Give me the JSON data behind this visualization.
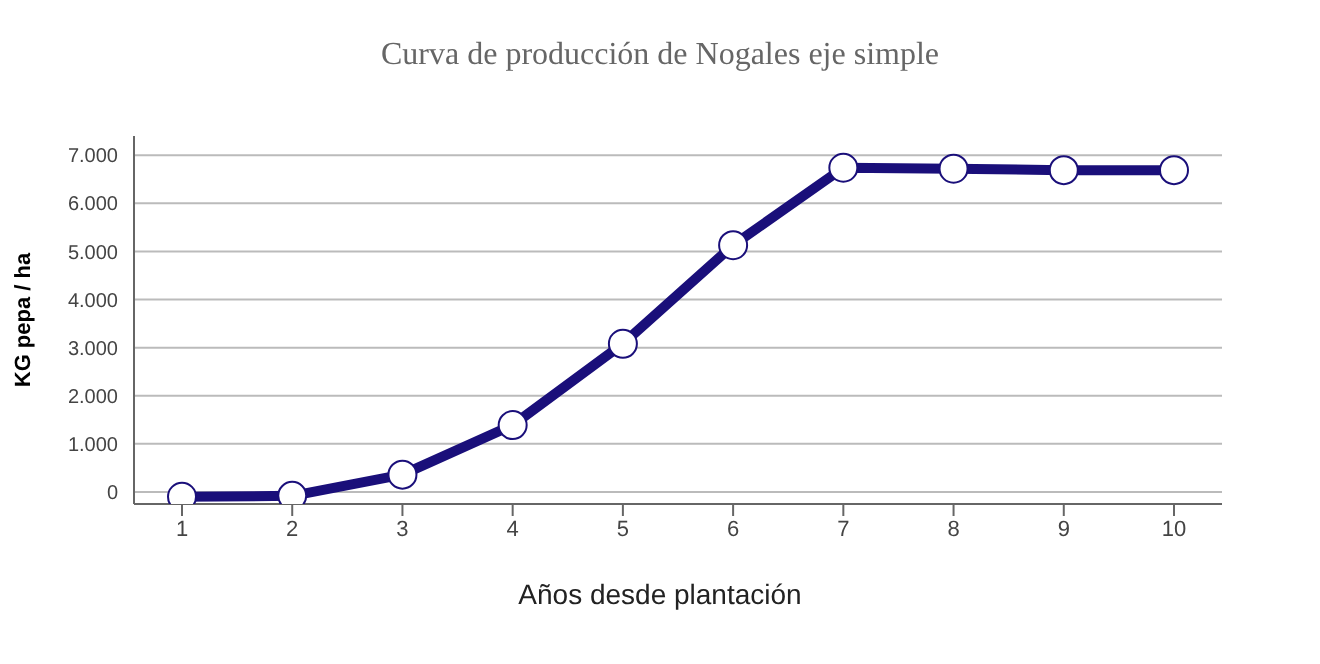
{
  "chart_data": {
    "type": "line",
    "title": "Curva de producción de Nogales eje simple",
    "xlabel": "Años desde plantación",
    "ylabel": "KG pepa / ha",
    "categories": [
      "1",
      "2",
      "3",
      "4",
      "5",
      "6",
      "7",
      "8",
      "9",
      "10"
    ],
    "series": [
      {
        "color": "#1a0f7a",
        "values": [
          -100,
          -80,
          360,
          1390,
          3080,
          5130,
          6740,
          6720,
          6690,
          6690
        ]
      }
    ],
    "ylim": [
      -250,
      7400
    ],
    "yticks": [
      {
        "value": 0,
        "label": "0"
      },
      {
        "value": 1000,
        "label": "1.000"
      },
      {
        "value": 2000,
        "label": "2.000"
      },
      {
        "value": 3000,
        "label": "3.000"
      },
      {
        "value": 4000,
        "label": "4.000"
      },
      {
        "value": 5000,
        "label": "5.000"
      },
      {
        "value": 6000,
        "label": "6.000"
      },
      {
        "value": 7000,
        "label": "7.000"
      }
    ],
    "grid": "y",
    "legend": false,
    "marker": "circle",
    "line_style": "solid"
  }
}
